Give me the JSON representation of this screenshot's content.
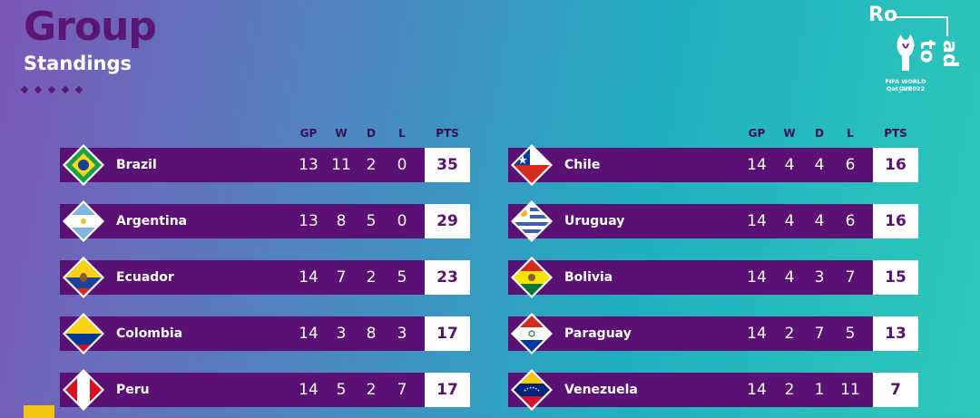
{
  "header": {
    "title": "Group",
    "subtitle": "Standings"
  },
  "logo": {
    "text_ro": "Ro",
    "text_adto": "ad to",
    "line1": "FIFA WORLD CUP",
    "line2": "Qat_ar2022"
  },
  "columns": {
    "gp": "GP",
    "w": "W",
    "d": "D",
    "l": "L",
    "pts": "PTS"
  },
  "colors": {
    "bar": "#5b1074",
    "title": "#5a1672",
    "pts_bg": "#ffffff"
  },
  "left_table": [
    {
      "country": "Brazil",
      "flag": "brazil-flag-icon",
      "gp": "13",
      "w": "11",
      "d": "2",
      "l": "0",
      "pts": "35"
    },
    {
      "country": "Argentina",
      "flag": "argentina-flag-icon",
      "gp": "13",
      "w": "8",
      "d": "5",
      "l": "0",
      "pts": "29"
    },
    {
      "country": "Ecuador",
      "flag": "ecuador-flag-icon",
      "gp": "14",
      "w": "7",
      "d": "2",
      "l": "5",
      "pts": "23"
    },
    {
      "country": "Colombia",
      "flag": "colombia-flag-icon",
      "gp": "14",
      "w": "3",
      "d": "8",
      "l": "3",
      "pts": "17"
    },
    {
      "country": "Peru",
      "flag": "peru-flag-icon",
      "gp": "14",
      "w": "5",
      "d": "2",
      "l": "7",
      "pts": "17"
    }
  ],
  "right_table": [
    {
      "country": "Chile",
      "flag": "chile-flag-icon",
      "gp": "14",
      "w": "4",
      "d": "4",
      "l": "6",
      "pts": "16"
    },
    {
      "country": "Uruguay",
      "flag": "uruguay-flag-icon",
      "gp": "14",
      "w": "4",
      "d": "4",
      "l": "6",
      "pts": "16"
    },
    {
      "country": "Bolivia",
      "flag": "bolivia-flag-icon",
      "gp": "14",
      "w": "4",
      "d": "3",
      "l": "7",
      "pts": "15"
    },
    {
      "country": "Paraguay",
      "flag": "paraguay-flag-icon",
      "gp": "14",
      "w": "2",
      "d": "7",
      "l": "5",
      "pts": "13"
    },
    {
      "country": "Venezuela",
      "flag": "venezuela-flag-icon",
      "gp": "14",
      "w": "2",
      "d": "1",
      "l": "11",
      "pts": "7"
    }
  ]
}
